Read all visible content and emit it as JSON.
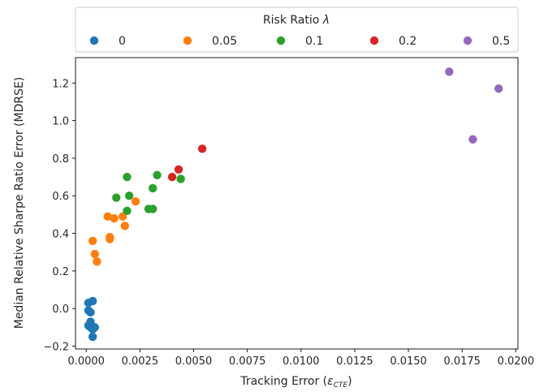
{
  "chart_data": {
    "type": "scatter",
    "xlabel": "Tracking Error (",
    "xlabel_symbol": "ε",
    "xlabel_subscript": "CTE",
    "xlabel_close": ")",
    "ylabel": "Median Relative Sharpe Ratio Error (MDRSE)",
    "xlim": [
      -0.0005,
      0.0201
    ],
    "ylim": [
      -0.215,
      1.335
    ],
    "xticks": [
      0.0,
      0.0025,
      0.005,
      0.0075,
      0.01,
      0.0125,
      0.015,
      0.0175,
      0.02
    ],
    "xtick_labels": [
      "0.0000",
      "0.0025",
      "0.0050",
      "0.0075",
      "0.0100",
      "0.0125",
      "0.0150",
      "0.0175",
      "0.0200"
    ],
    "yticks": [
      -0.2,
      0.0,
      0.2,
      0.4,
      0.6,
      0.8,
      1.0,
      1.2
    ],
    "ytick_labels": [
      "−0.2",
      "0.0",
      "0.2",
      "0.4",
      "0.6",
      "0.8",
      "1.0",
      "1.2"
    ],
    "grid": false,
    "legend": {
      "title": "Risk Ratio ",
      "title_symbol": "λ",
      "placement": "top-center, above plot, horizontal"
    },
    "series": [
      {
        "name": "0",
        "color": "#1f77b4",
        "points": [
          [
            0.0001,
            0.03
          ],
          [
            0.0003,
            0.04
          ],
          [
            0.0002,
            -0.02
          ],
          [
            0.0001,
            -0.01
          ],
          [
            0.0002,
            -0.07
          ],
          [
            0.0001,
            -0.09
          ],
          [
            0.0002,
            -0.1
          ],
          [
            0.0003,
            -0.11
          ],
          [
            0.0004,
            -0.1
          ],
          [
            0.0003,
            -0.15
          ]
        ]
      },
      {
        "name": "0.05",
        "color": "#ff7f0e",
        "points": [
          [
            0.0003,
            0.36
          ],
          [
            0.0004,
            0.29
          ],
          [
            0.0005,
            0.25
          ],
          [
            0.001,
            0.49
          ],
          [
            0.0011,
            0.37
          ],
          [
            0.0011,
            0.38
          ],
          [
            0.0013,
            0.48
          ],
          [
            0.0017,
            0.49
          ],
          [
            0.0018,
            0.44
          ],
          [
            0.0023,
            0.57
          ]
        ]
      },
      {
        "name": "0.1",
        "color": "#2ca02c",
        "points": [
          [
            0.0014,
            0.59
          ],
          [
            0.0019,
            0.7
          ],
          [
            0.002,
            0.6
          ],
          [
            0.0019,
            0.52
          ],
          [
            0.0029,
            0.53
          ],
          [
            0.0031,
            0.53
          ],
          [
            0.0031,
            0.64
          ],
          [
            0.0033,
            0.71
          ],
          [
            0.0044,
            0.69
          ]
        ]
      },
      {
        "name": "0.2",
        "color": "#d62728",
        "points": [
          [
            0.004,
            0.7
          ],
          [
            0.0043,
            0.74
          ],
          [
            0.0054,
            0.85
          ]
        ]
      },
      {
        "name": "0.5",
        "color": "#9467bd",
        "points": [
          [
            0.0169,
            1.26
          ],
          [
            0.0192,
            1.17
          ],
          [
            0.018,
            0.9
          ]
        ]
      }
    ]
  }
}
